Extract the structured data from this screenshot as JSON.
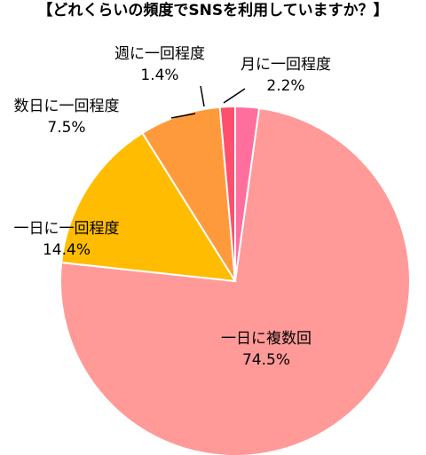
{
  "title": "【どれくらいの頻度でSNSを利用していますか？】",
  "chart_data": {
    "type": "pie",
    "title": "【どれくらいの頻度でSNSを利用していますか？】",
    "start": "top",
    "direction": "clockwise",
    "slices": [
      {
        "label": "月に一回程度",
        "value": 2.2,
        "value_label": "2.2%",
        "color": "#FF6F9E"
      },
      {
        "label": "一日に複数回",
        "value": 74.5,
        "value_label": "74.5%",
        "color": "#FF9A98"
      },
      {
        "label": "一日に一回程度",
        "value": 14.4,
        "value_label": "14.4%",
        "color": "#FFBC00"
      },
      {
        "label": "数日に一回程度",
        "value": 7.5,
        "value_label": "7.5%",
        "color": "#FF9A3C"
      },
      {
        "label": "週に一回程度",
        "value": 1.4,
        "value_label": "1.4%",
        "color": "#FF4F6E"
      }
    ]
  }
}
